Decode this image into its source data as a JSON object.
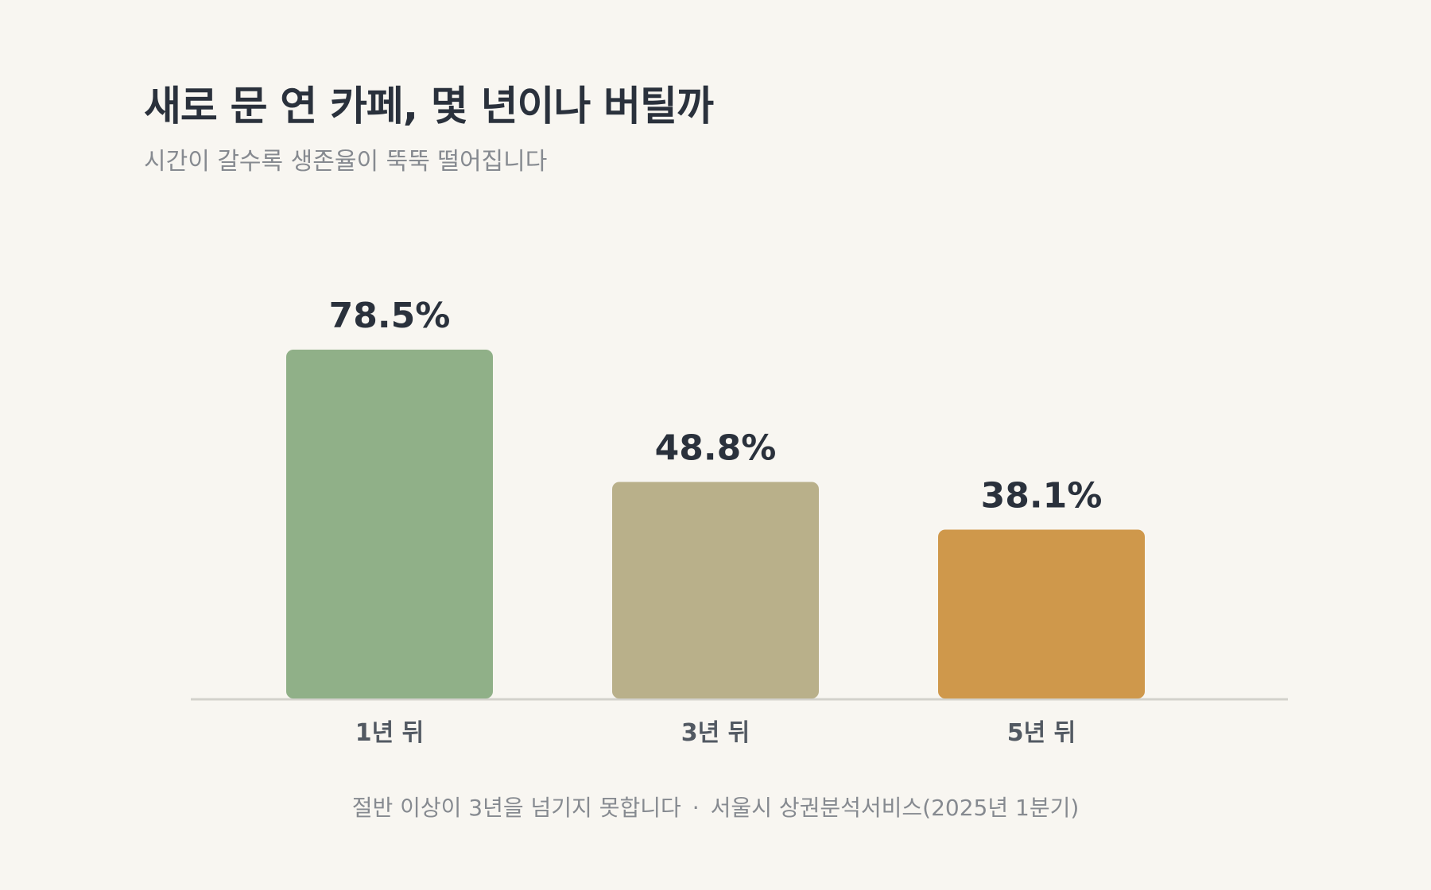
{
  "header": {
    "title": "새로 문 연 카페, 몇 년이나 버틸까",
    "subtitle": "시간이 갈수록 생존율이 뚝뚝 떨어집니다"
  },
  "footer": {
    "note": "절반 이상이 3년을 넘기지 못합니다",
    "separator": "·",
    "source": "서울시 상권분석서비스(2025년 1분기)"
  },
  "chart_data": {
    "type": "bar",
    "title": "새로 문 연 카페, 몇 년이나 버틸까",
    "subtitle": "시간이 갈수록 생존율이 뚝뚝 떨어집니다",
    "categories": [
      "1년 뒤",
      "3년 뒤",
      "5년 뒤"
    ],
    "values": [
      78.5,
      48.8,
      38.1
    ],
    "value_labels": [
      "78.5%",
      "48.8%",
      "38.1%"
    ],
    "unit": "%",
    "colors": [
      "#90b088",
      "#b9b08a",
      "#cf984b"
    ],
    "ylim": [
      0,
      100
    ],
    "grid": false,
    "legend": "none",
    "xlabel": "",
    "ylabel": ""
  }
}
